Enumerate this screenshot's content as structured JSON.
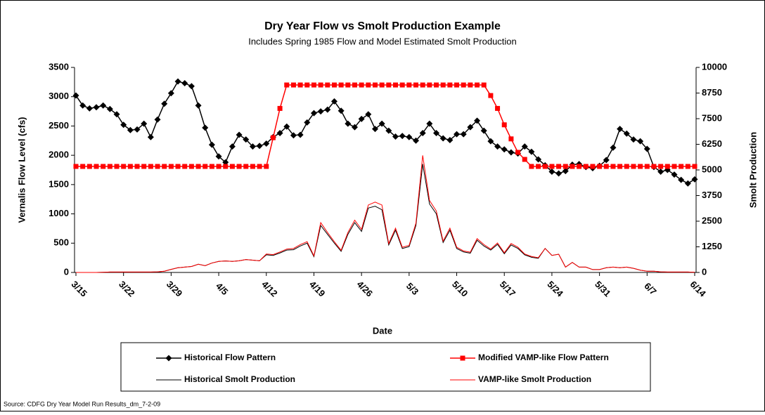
{
  "chart_data": {
    "type": "line",
    "title": "Dry Year Flow vs Smolt Production Example",
    "subtitle": "Includes Spring 1985 Flow and Model Estimated Smolt Production",
    "xlabel": "Date",
    "ylabel": "Vernalis Flow Level (cfs)",
    "y2label": "Smolt Production",
    "source": "Source: CDFG Dry Year Model Run Results_dm_7-2-09",
    "legend": "bottom",
    "categories": [
      "3/15",
      null,
      null,
      null,
      null,
      null,
      null,
      "3/22",
      null,
      null,
      null,
      null,
      null,
      null,
      "3/29",
      null,
      null,
      null,
      null,
      null,
      null,
      "4/5",
      null,
      null,
      null,
      null,
      null,
      null,
      "4/12",
      null,
      null,
      null,
      null,
      null,
      null,
      "4/19",
      null,
      null,
      null,
      null,
      null,
      null,
      "4/26",
      null,
      null,
      null,
      null,
      null,
      null,
      "5/3",
      null,
      null,
      null,
      null,
      null,
      null,
      "5/10",
      null,
      null,
      null,
      null,
      null,
      null,
      "5/17",
      null,
      null,
      null,
      null,
      null,
      null,
      "5/24",
      null,
      null,
      null,
      null,
      null,
      null,
      "5/31",
      null,
      null,
      null,
      null,
      null,
      null,
      "6/7",
      null,
      null,
      null,
      null,
      null,
      null,
      "6/14"
    ],
    "ylim": [
      0,
      3500
    ],
    "yticks": [
      0,
      500,
      1000,
      1500,
      2000,
      2500,
      3000,
      3500
    ],
    "y2lim": [
      0,
      10000
    ],
    "y2ticks": [
      0,
      1250,
      2500,
      3750,
      5000,
      6250,
      7500,
      8750,
      10000
    ],
    "series": [
      {
        "name": "Historical Flow Pattern",
        "color": "#000000",
        "marker": "diamond",
        "width": 1.5,
        "values": [
          3020,
          2850,
          2800,
          2820,
          2850,
          2790,
          2700,
          2520,
          2430,
          2440,
          2540,
          2310,
          2610,
          2880,
          3060,
          3260,
          3230,
          3180,
          2850,
          2470,
          2180,
          1980,
          1880,
          2150,
          2350,
          2270,
          2150,
          2160,
          2200,
          2310,
          2380,
          2490,
          2340,
          2350,
          2560,
          2720,
          2750,
          2780,
          2920,
          2760,
          2540,
          2480,
          2620,
          2700,
          2450,
          2540,
          2420,
          2320,
          2330,
          2310,
          2250,
          2380,
          2540,
          2380,
          2290,
          2260,
          2360,
          2360,
          2480,
          2590,
          2420,
          2240,
          2150,
          2100,
          2050,
          2030,
          2150,
          2060,
          1930,
          1830,
          1720,
          1690,
          1730,
          1840,
          1850,
          1800,
          1780,
          1820,
          1920,
          2130,
          2450,
          2370,
          2270,
          2240,
          2110,
          1800,
          1720,
          1750,
          1670,
          1580,
          1520,
          1590
        ]
      },
      {
        "name": "Modified VAMP-like Flow Pattern",
        "color": "#ff0000",
        "marker": "square",
        "width": 1.5,
        "values": [
          1810,
          1810,
          1810,
          1810,
          1810,
          1810,
          1810,
          1810,
          1810,
          1810,
          1810,
          1810,
          1810,
          1810,
          1810,
          1810,
          1810,
          1810,
          1810,
          1810,
          1810,
          1810,
          1810,
          1810,
          1810,
          1810,
          1810,
          1810,
          1810,
          2300,
          2800,
          3200,
          3200,
          3200,
          3200,
          3200,
          3200,
          3200,
          3200,
          3200,
          3200,
          3200,
          3200,
          3200,
          3200,
          3200,
          3200,
          3200,
          3200,
          3200,
          3200,
          3200,
          3200,
          3200,
          3200,
          3200,
          3200,
          3200,
          3200,
          3200,
          3200,
          3020,
          2800,
          2520,
          2280,
          2050,
          1930,
          1810,
          1810,
          1810,
          1810,
          1810,
          1810,
          1810,
          1810,
          1810,
          1810,
          1810,
          1810,
          1810,
          1810,
          1810,
          1810,
          1810,
          1810,
          1810,
          1810,
          1810,
          1810,
          1810,
          1810,
          1810
        ]
      },
      {
        "name": "Historical Smolt Production",
        "color": "#000000",
        "marker": null,
        "width": 1,
        "axis": "y2",
        "values": [
          0,
          0,
          0,
          0,
          10,
          20,
          20,
          20,
          20,
          20,
          20,
          20,
          30,
          60,
          150,
          230,
          260,
          290,
          400,
          330,
          460,
          540,
          560,
          540,
          570,
          630,
          600,
          570,
          860,
          830,
          950,
          1090,
          1110,
          1290,
          1430,
          770,
          2290,
          1860,
          1430,
          1030,
          1860,
          2430,
          2000,
          3140,
          3230,
          3060,
          1340,
          2060,
          1170,
          1260,
          2290,
          5290,
          3340,
          2860,
          1460,
          2060,
          1170,
          1000,
          940,
          1570,
          1290,
          1090,
          1370,
          910,
          1340,
          1170,
          860,
          740,
          690,
          1170,
          830,
          890,
          260,
          490,
          260,
          260,
          140,
          140,
          230,
          260,
          230,
          260,
          200,
          110,
          60,
          60,
          30,
          20,
          20,
          20,
          20,
          10
        ]
      },
      {
        "name": "VAMP-like Smolt Production",
        "color": "#ff0000",
        "marker": null,
        "width": 1,
        "axis": "y2",
        "values": [
          0,
          0,
          0,
          0,
          10,
          20,
          20,
          20,
          20,
          20,
          20,
          20,
          30,
          60,
          150,
          230,
          260,
          290,
          400,
          330,
          460,
          540,
          560,
          540,
          570,
          630,
          600,
          570,
          900,
          870,
          1000,
          1140,
          1170,
          1360,
          1500,
          810,
          2430,
          1950,
          1500,
          1080,
          1950,
          2550,
          2100,
          3290,
          3430,
          3290,
          1410,
          2160,
          1230,
          1320,
          2400,
          5710,
          3510,
          3000,
          1530,
          2160,
          1230,
          1050,
          990,
          1650,
          1360,
          1140,
          1440,
          960,
          1410,
          1230,
          900,
          780,
          720,
          1170,
          830,
          890,
          260,
          490,
          260,
          260,
          140,
          140,
          230,
          260,
          230,
          260,
          200,
          110,
          60,
          60,
          30,
          20,
          20,
          20,
          20,
          10
        ]
      }
    ]
  }
}
